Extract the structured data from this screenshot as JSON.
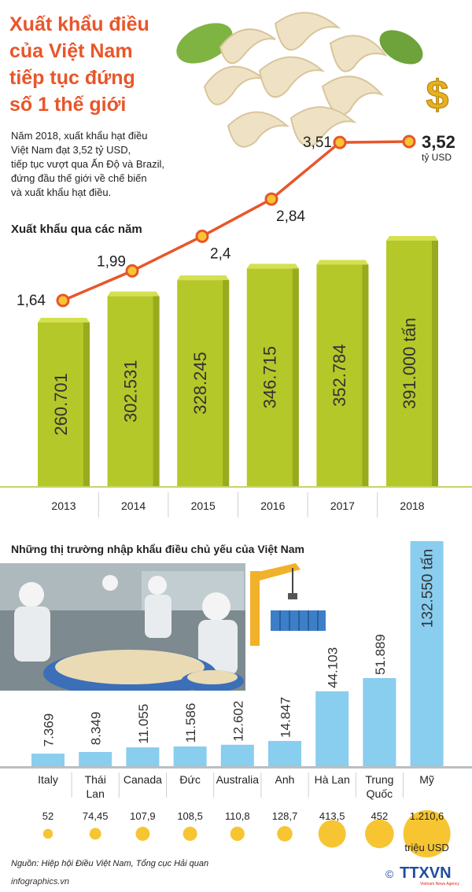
{
  "title": [
    "Xuất khẩu điều",
    "của Việt Nam",
    "tiếp tục đứng",
    "số 1 thế giới"
  ],
  "intro": [
    "Năm 2018, xuất khẩu hạt điều",
    "Việt Nam đạt 3,52 tỷ USD,",
    "tiếp tục vượt qua Ấn Độ và Brazil,",
    "đứng đầu thế giới về chế biến",
    "và xuất khẩu hạt điều."
  ],
  "highlight": {
    "value": "3,52",
    "unit": "tỷ USD"
  },
  "section1_title": "Xuất khẩu qua các năm",
  "section2_title": "Những thị trường nhập khẩu điều chủ yếu của Việt Nam",
  "source": "Nguồn: Hiệp hội Điều Việt Nam, Tổng cục Hải quan",
  "website": "infographics.vn",
  "logo": {
    "text": "TTXVN",
    "sub": "Vietnam News Agency",
    "copyright": "©"
  },
  "colors": {
    "title": "#e8562a",
    "bar_green": "#b5c829",
    "line_orange": "#e8562a",
    "dot_yellow": "#f7c532",
    "bar_blue": "#89cdef"
  },
  "chart_data": [
    {
      "type": "bar",
      "categories": [
        "2013",
        "2014",
        "2015",
        "2016",
        "2017",
        "2018"
      ],
      "series": [
        {
          "values": [
            260701,
            302531,
            328245,
            346715,
            352784,
            391000
          ]
        }
      ],
      "value_labels": [
        "260.701",
        "302.531",
        "328.245",
        "346.715",
        "352.784",
        "391.000 tấn"
      ],
      "line_series": {
        "values": [
          1.64,
          1.99,
          2.4,
          2.84,
          3.51,
          3.52
        ],
        "labels": [
          "1,64",
          "1,99",
          "2,4",
          "2,84",
          "3,51",
          "3,52"
        ]
      },
      "title": "Xuất khẩu qua các năm",
      "xlabel": "",
      "ylabel": ""
    },
    {
      "type": "bar",
      "categories": [
        "Italy",
        "Thái Lan",
        "Canada",
        "Đức",
        "Australia",
        "Anh",
        "Hà Lan",
        "Trung Quốc",
        "Mỹ"
      ],
      "category_lines": [
        [
          "Italy"
        ],
        [
          "Thái",
          "Lan"
        ],
        [
          "Canada"
        ],
        [
          "Đức"
        ],
        [
          "Australia"
        ],
        [
          "Anh"
        ],
        [
          "Hà Lan"
        ],
        [
          "Trung",
          "Quốc"
        ],
        [
          "Mỹ"
        ]
      ],
      "series": [
        {
          "values": [
            7369,
            8349,
            11055,
            11586,
            12602,
            14847,
            44103,
            51889,
            132550
          ]
        }
      ],
      "value_labels": [
        "7.369",
        "8.349",
        "11.055",
        "11.586",
        "12.602",
        "14.847",
        "44.103",
        "51.889",
        "132.550 tấn"
      ],
      "bubble_values": [
        52,
        74.45,
        107.9,
        108.5,
        110.8,
        128.7,
        413.5,
        452,
        1210.6
      ],
      "bubble_labels": [
        "52",
        "74,45",
        "107,9",
        "108,5",
        "110,8",
        "128,7",
        "413,5",
        "452",
        "1.210,6"
      ],
      "bubble_unit": "triệu USD",
      "title": "Những thị trường nhập khẩu điều chủ yếu của Việt Nam",
      "xlabel": "",
      "ylabel": ""
    }
  ]
}
